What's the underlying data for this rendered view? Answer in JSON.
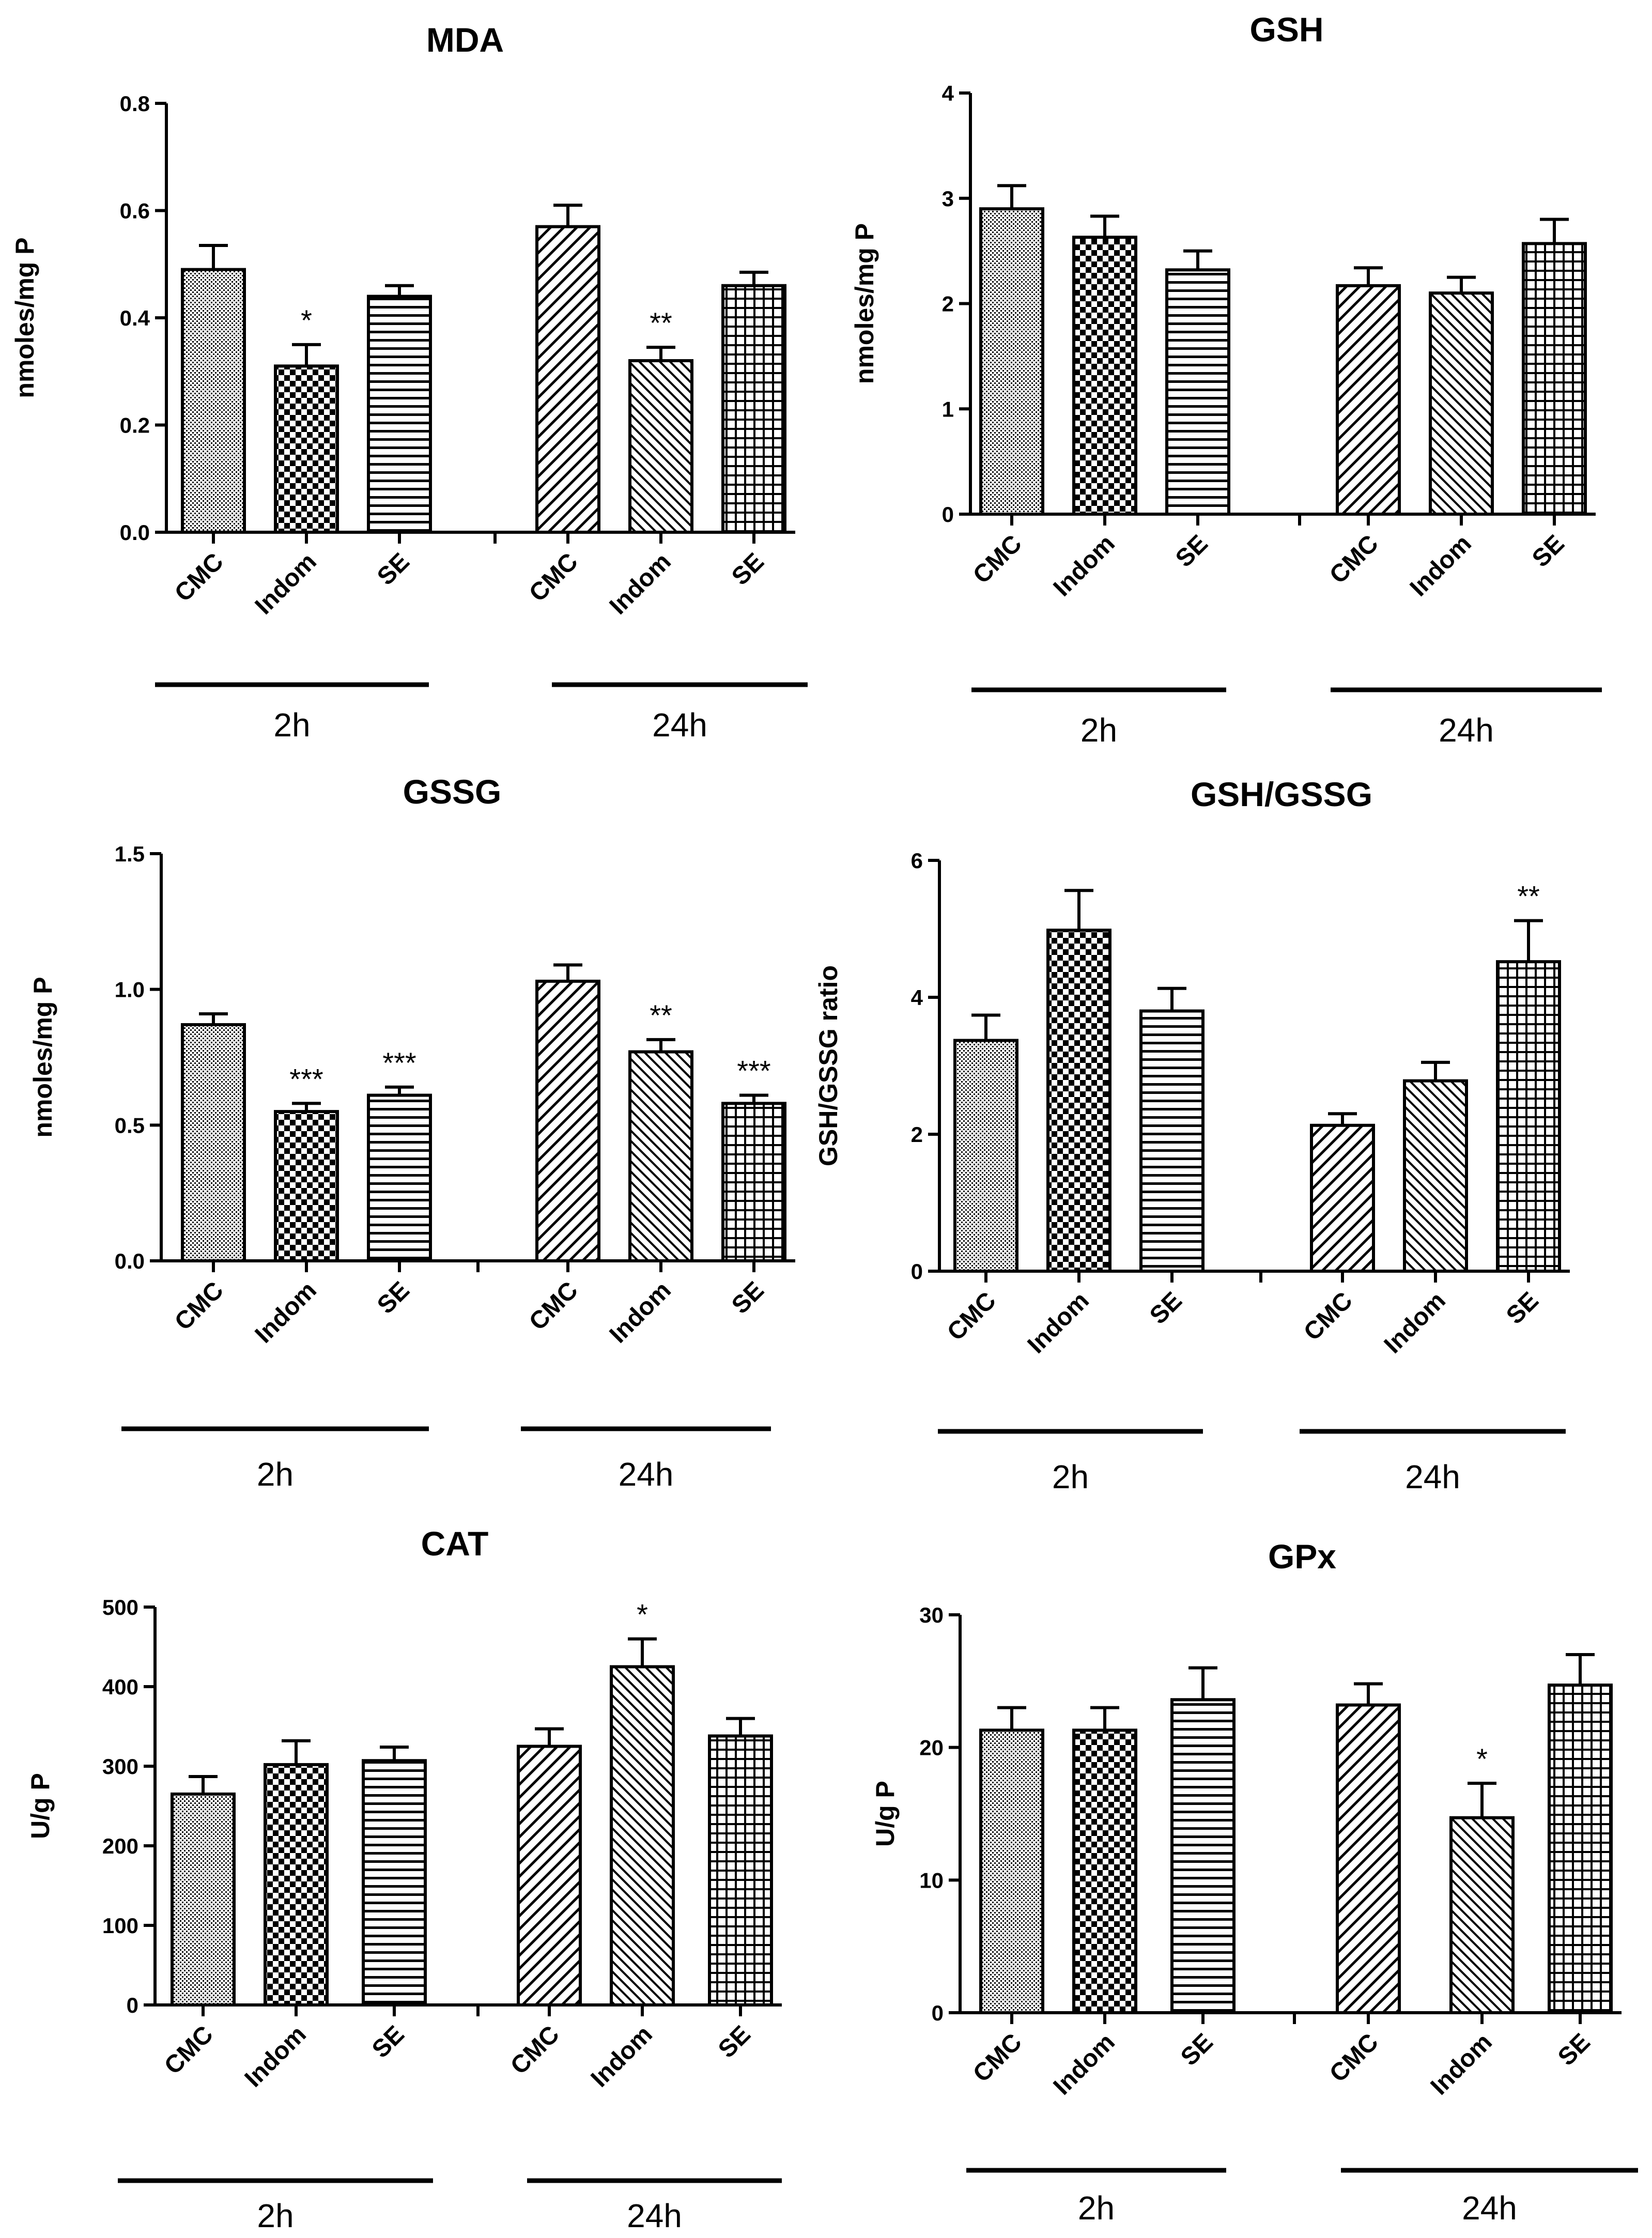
{
  "chart_data": [
    {
      "type": "bar",
      "title": "MDA",
      "ylabel": "nmoles/mg P",
      "ylim": [
        0,
        0.8
      ],
      "yticks": [
        "0.0",
        "0.2",
        "0.4",
        "0.6",
        "0.8"
      ],
      "ytick_values": [
        0,
        0.2,
        0.4,
        0.6,
        0.8
      ],
      "groups": [
        {
          "label": "2h",
          "bars": [
            {
              "category": "CMC",
              "value": 0.49,
              "error": 0.045,
              "sig": "",
              "pattern": "dots"
            },
            {
              "category": "Indom",
              "value": 0.31,
              "error": 0.04,
              "sig": "*",
              "pattern": "checker"
            },
            {
              "category": "SE",
              "value": 0.44,
              "error": 0.02,
              "sig": "",
              "pattern": "hlines"
            }
          ]
        },
        {
          "label": "24h",
          "bars": [
            {
              "category": "CMC",
              "value": 0.57,
              "error": 0.04,
              "sig": "",
              "pattern": "fdiag"
            },
            {
              "category": "Indom",
              "value": 0.32,
              "error": 0.025,
              "sig": "**",
              "pattern": "bdiag"
            },
            {
              "category": "SE",
              "value": 0.46,
              "error": 0.025,
              "sig": "",
              "pattern": "grid"
            }
          ]
        }
      ]
    },
    {
      "type": "bar",
      "title": "GSH",
      "ylabel": "nmoles/mg P",
      "ylim": [
        0,
        4
      ],
      "yticks": [
        "0",
        "1",
        "2",
        "3",
        "4"
      ],
      "ytick_values": [
        0,
        1,
        2,
        3,
        4
      ],
      "groups": [
        {
          "label": "2h",
          "bars": [
            {
              "category": "CMC",
              "value": 2.9,
              "error": 0.22,
              "sig": "",
              "pattern": "dots"
            },
            {
              "category": "Indom",
              "value": 2.63,
              "error": 0.2,
              "sig": "",
              "pattern": "checker"
            },
            {
              "category": "SE",
              "value": 2.32,
              "error": 0.18,
              "sig": "",
              "pattern": "hlines"
            }
          ]
        },
        {
          "label": "24h",
          "bars": [
            {
              "category": "CMC",
              "value": 2.17,
              "error": 0.17,
              "sig": "",
              "pattern": "fdiag"
            },
            {
              "category": "Indom",
              "value": 2.1,
              "error": 0.15,
              "sig": "",
              "pattern": "bdiag"
            },
            {
              "category": "SE",
              "value": 2.57,
              "error": 0.23,
              "sig": "",
              "pattern": "grid"
            }
          ]
        }
      ]
    },
    {
      "type": "bar",
      "title": "GSSG",
      "ylabel": "nmoles/mg P",
      "ylim": [
        0,
        1.5
      ],
      "yticks": [
        "0.0",
        "0.5",
        "1.0",
        "1.5"
      ],
      "ytick_values": [
        0,
        0.5,
        1.0,
        1.5
      ],
      "groups": [
        {
          "label": "2h",
          "bars": [
            {
              "category": "CMC",
              "value": 0.87,
              "error": 0.04,
              "sig": "",
              "pattern": "dots"
            },
            {
              "category": "Indom",
              "value": 0.55,
              "error": 0.03,
              "sig": "***",
              "pattern": "checker"
            },
            {
              "category": "SE",
              "value": 0.61,
              "error": 0.03,
              "sig": "***",
              "pattern": "hlines"
            }
          ]
        },
        {
          "label": "24h",
          "bars": [
            {
              "category": "CMC",
              "value": 1.03,
              "error": 0.06,
              "sig": "",
              "pattern": "fdiag"
            },
            {
              "category": "Indom",
              "value": 0.77,
              "error": 0.045,
              "sig": "**",
              "pattern": "bdiag"
            },
            {
              "category": "SE",
              "value": 0.58,
              "error": 0.03,
              "sig": "***",
              "pattern": "grid"
            }
          ]
        }
      ]
    },
    {
      "type": "bar",
      "title": "GSH/GSSG",
      "ylabel": "GSH/GSSG ratio",
      "ylim": [
        0,
        6
      ],
      "yticks": [
        "0",
        "2",
        "4",
        "6"
      ],
      "ytick_values": [
        0,
        2,
        4,
        6
      ],
      "groups": [
        {
          "label": "2h",
          "bars": [
            {
              "category": "CMC",
              "value": 3.37,
              "error": 0.37,
              "sig": "",
              "pattern": "dots"
            },
            {
              "category": "Indom",
              "value": 4.98,
              "error": 0.58,
              "sig": "",
              "pattern": "checker"
            },
            {
              "category": "SE",
              "value": 3.8,
              "error": 0.33,
              "sig": "",
              "pattern": "hlines"
            }
          ]
        },
        {
          "label": "24h",
          "bars": [
            {
              "category": "CMC",
              "value": 2.13,
              "error": 0.17,
              "sig": "",
              "pattern": "fdiag"
            },
            {
              "category": "Indom",
              "value": 2.78,
              "error": 0.27,
              "sig": "",
              "pattern": "bdiag"
            },
            {
              "category": "SE",
              "value": 4.52,
              "error": 0.6,
              "sig": "**",
              "pattern": "grid"
            }
          ]
        }
      ]
    },
    {
      "type": "bar",
      "title": "CAT",
      "ylabel": "U/g P",
      "ylim": [
        0,
        500
      ],
      "yticks": [
        "0",
        "100",
        "200",
        "300",
        "400",
        "500"
      ],
      "ytick_values": [
        0,
        100,
        200,
        300,
        400,
        500
      ],
      "groups": [
        {
          "label": "2h",
          "bars": [
            {
              "category": "CMC",
              "value": 265,
              "error": 22,
              "sig": "",
              "pattern": "dots"
            },
            {
              "category": "Indom",
              "value": 302,
              "error": 30,
              "sig": "",
              "pattern": "checker"
            },
            {
              "category": "SE",
              "value": 307,
              "error": 17,
              "sig": "",
              "pattern": "hlines"
            }
          ]
        },
        {
          "label": "24h",
          "bars": [
            {
              "category": "CMC",
              "value": 325,
              "error": 22,
              "sig": "",
              "pattern": "fdiag"
            },
            {
              "category": "Indom",
              "value": 425,
              "error": 35,
              "sig": "*",
              "pattern": "bdiag"
            },
            {
              "category": "SE",
              "value": 338,
              "error": 22,
              "sig": "",
              "pattern": "grid"
            }
          ]
        }
      ]
    },
    {
      "type": "bar",
      "title": "GPx",
      "ylabel": "U/g P",
      "ylim": [
        0,
        30
      ],
      "yticks": [
        "0",
        "10",
        "20",
        "30"
      ],
      "ytick_values": [
        0,
        10,
        20,
        30
      ],
      "groups": [
        {
          "label": "2h",
          "bars": [
            {
              "category": "CMC",
              "value": 21.3,
              "error": 1.7,
              "sig": "",
              "pattern": "dots"
            },
            {
              "category": "Indom",
              "value": 21.3,
              "error": 1.7,
              "sig": "",
              "pattern": "checker"
            },
            {
              "category": "SE",
              "value": 23.6,
              "error": 2.4,
              "sig": "",
              "pattern": "hlines"
            }
          ]
        },
        {
          "label": "24h",
          "bars": [
            {
              "category": "CMC",
              "value": 23.2,
              "error": 1.6,
              "sig": "",
              "pattern": "fdiag"
            },
            {
              "category": "Indom",
              "value": 14.7,
              "error": 2.6,
              "sig": "*",
              "pattern": "bdiag"
            },
            {
              "category": "SE",
              "value": 24.7,
              "error": 2.3,
              "sig": "",
              "pattern": "grid"
            }
          ]
        }
      ]
    }
  ]
}
